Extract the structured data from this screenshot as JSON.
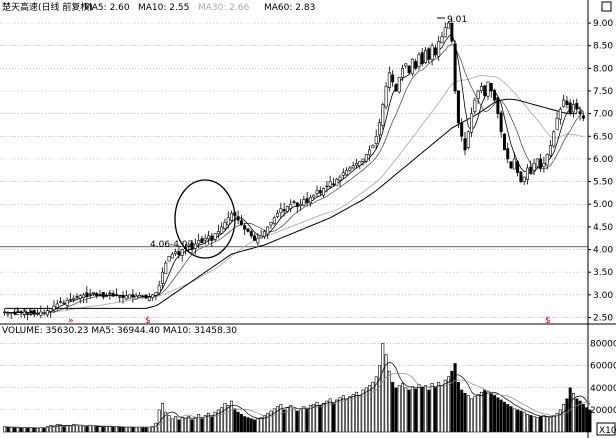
{
  "header": {
    "security": "楚天高速(日线 前复权)",
    "ma_labels": [
      {
        "name": "MA5",
        "value": "2.60",
        "color": "#000000"
      },
      {
        "name": "MA10",
        "value": "2.55",
        "color": "#444444"
      },
      {
        "name": "MA30",
        "value": "2.66",
        "color": "#aaaaaa"
      },
      {
        "name": "MA60",
        "value": "2.83",
        "color": "#000000"
      }
    ]
  },
  "volume_header": {
    "items": [
      {
        "name": "VOLUME",
        "value": "35630.23"
      },
      {
        "name": "MA5",
        "value": "36944.40"
      },
      {
        "name": "MA10",
        "value": "31458.30"
      }
    ]
  },
  "annotations": {
    "high": "9.01",
    "low": "2.55",
    "range": "4.06-4.07",
    "mark_double": "»",
    "mark_s1": "$",
    "mark_s2": "$",
    "multiplier": "X10",
    "corner_box": "□"
  },
  "colors": {
    "candle": "#000000",
    "ma5": "#000000",
    "ma10": "#555555",
    "ma30": "#b0b0b0",
    "ma60": "#000000",
    "grid": "#9a9a9a",
    "mark": "#cc0000"
  },
  "chart_data": {
    "type": "candlestick",
    "y_ticks": [
      "2.50",
      "3.00",
      "3.50",
      "4.00",
      "4.50",
      "5.00",
      "5.50",
      "6.00",
      "6.50",
      "7.00",
      "7.50",
      "8.00",
      "8.50",
      "9.00"
    ],
    "ylim": [
      2.4,
      9.2
    ],
    "volume_ticks": [
      "20000",
      "40000",
      "60000",
      "80000"
    ],
    "volume_ylim": [
      0,
      85000
    ],
    "closes": [
      2.62,
      2.6,
      2.61,
      2.59,
      2.63,
      2.6,
      2.62,
      2.58,
      2.6,
      2.57,
      2.59,
      2.62,
      2.6,
      2.65,
      2.7,
      2.75,
      2.8,
      2.85,
      2.82,
      2.88,
      2.9,
      2.92,
      2.95,
      2.98,
      3.0,
      2.96,
      3.02,
      3.05,
      2.98,
      3.0,
      2.95,
      2.98,
      3.02,
      2.97,
      3.0,
      2.96,
      2.94,
      2.98,
      3.0,
      2.95,
      2.97,
      2.99,
      2.96,
      2.93,
      2.95,
      3.0,
      3.05,
      3.2,
      3.5,
      3.7,
      3.85,
      3.9,
      3.95,
      3.88,
      4.0,
      4.05,
      4.1,
      4.0,
      4.12,
      4.2,
      4.15,
      4.25,
      4.3,
      4.2,
      4.35,
      4.4,
      4.5,
      4.6,
      4.7,
      4.8,
      4.75,
      4.65,
      4.55,
      4.45,
      4.4,
      4.3,
      4.2,
      4.25,
      4.3,
      4.4,
      4.5,
      4.6,
      4.7,
      4.8,
      4.9,
      4.85,
      4.95,
      5.0,
      5.05,
      4.95,
      5.0,
      5.1,
      5.05,
      5.15,
      5.2,
      5.3,
      5.25,
      5.35,
      5.4,
      5.5,
      5.45,
      5.55,
      5.6,
      5.7,
      5.75,
      5.8,
      5.85,
      5.9,
      5.95,
      6.0,
      6.1,
      6.2,
      6.3,
      6.5,
      6.8,
      7.2,
      7.6,
      7.9,
      7.7,
      7.5,
      7.8,
      8.0,
      8.1,
      7.9,
      8.2,
      8.0,
      8.3,
      8.1,
      8.4,
      8.2,
      8.5,
      8.3,
      8.6,
      8.7,
      8.9,
      9.0,
      8.6,
      7.5,
      6.8,
      6.5,
      6.2,
      6.6,
      7.0,
      7.3,
      7.5,
      7.6,
      7.4,
      7.7,
      7.5,
      7.3,
      7.0,
      6.6,
      6.2,
      6.0,
      5.8,
      6.0,
      5.7,
      5.5,
      5.6,
      5.8,
      5.7,
      5.9,
      6.0,
      5.8,
      5.9,
      6.1,
      6.3,
      6.6,
      6.9,
      7.1,
      7.3,
      7.2,
      7.0,
      7.2,
      7.1,
      7.0,
      6.9
    ],
    "ma60": [
      2.7,
      2.7,
      2.7,
      2.7,
      2.7,
      2.7,
      2.7,
      2.7,
      2.7,
      2.7,
      2.7,
      2.7,
      2.7,
      2.7,
      2.7,
      2.7,
      2.7,
      2.7,
      2.7,
      2.7,
      2.7,
      2.7,
      2.7,
      2.7,
      2.7,
      2.7,
      2.7,
      2.7,
      2.7,
      2.7,
      2.7,
      2.7,
      2.7,
      2.7,
      2.7,
      2.7,
      2.7,
      2.7,
      2.7,
      2.7,
      2.7,
      2.7,
      2.7,
      2.7,
      2.72,
      2.74,
      2.76,
      2.8,
      2.85,
      2.9,
      2.95,
      3.0,
      3.05,
      3.1,
      3.15,
      3.2,
      3.25,
      3.3,
      3.35,
      3.4,
      3.45,
      3.5,
      3.55,
      3.6,
      3.65,
      3.7,
      3.75,
      3.8,
      3.85,
      3.9,
      3.92,
      3.94,
      3.96,
      3.98,
      4.0,
      4.02,
      4.04,
      4.06,
      4.08,
      4.1,
      4.13,
      4.16,
      4.19,
      4.22,
      4.25,
      4.28,
      4.31,
      4.34,
      4.37,
      4.4,
      4.43,
      4.46,
      4.49,
      4.52,
      4.55,
      4.58,
      4.61,
      4.64,
      4.67,
      4.7,
      4.74,
      4.78,
      4.82,
      4.86,
      4.9,
      4.94,
      4.98,
      5.02,
      5.06,
      5.1,
      5.15,
      5.2,
      5.25,
      5.3,
      5.36,
      5.42,
      5.48,
      5.54,
      5.6,
      5.66,
      5.72,
      5.78,
      5.84,
      5.9,
      5.96,
      6.02,
      6.08,
      6.14,
      6.2,
      6.26,
      6.32,
      6.38,
      6.44,
      6.5,
      6.56,
      6.62,
      6.68,
      6.72,
      6.76,
      6.8,
      6.84,
      6.88,
      6.92,
      6.96,
      7.0,
      7.05,
      7.1,
      7.15,
      7.2,
      7.25,
      7.28,
      7.3,
      7.31,
      7.32,
      7.32,
      7.31,
      7.3,
      7.28,
      7.26,
      7.24,
      7.22,
      7.2,
      7.18,
      7.16,
      7.14,
      7.12,
      7.1,
      7.08,
      7.06,
      7.04,
      7.02,
      7.01,
      7.0,
      7.0,
      7.0
    ],
    "volumes": [
      5000,
      4500,
      4000,
      4200,
      3800,
      4100,
      3900,
      4300,
      3700,
      4000,
      3600,
      4200,
      3900,
      4800,
      6000,
      5500,
      7000,
      6500,
      5000,
      6000,
      5500,
      7000,
      6500,
      6000,
      5500,
      5000,
      6200,
      5800,
      5000,
      4800,
      4500,
      5000,
      5200,
      4700,
      4900,
      4400,
      4200,
      4600,
      4800,
      4300,
      4500,
      4700,
      4400,
      4100,
      4300,
      5000,
      8000,
      20000,
      26000,
      18000,
      15000,
      12000,
      14000,
      11000,
      13000,
      12500,
      14000,
      11000,
      13000,
      16000,
      12000,
      15000,
      17000,
      14000,
      18000,
      20000,
      22000,
      26000,
      24000,
      28000,
      21000,
      18000,
      16000,
      14000,
      13000,
      12000,
      11000,
      12000,
      13000,
      15000,
      17000,
      19000,
      21000,
      23000,
      25000,
      20000,
      22000,
      24000,
      21000,
      19000,
      20000,
      23000,
      21000,
      24000,
      25000,
      27000,
      24000,
      26000,
      28000,
      30000,
      26000,
      29000,
      31000,
      33000,
      30000,
      32000,
      34000,
      36000,
      33000,
      38000,
      40000,
      42000,
      45000,
      50000,
      60000,
      80000,
      70000,
      55000,
      45000,
      40000,
      42000,
      44000,
      40000,
      38000,
      41000,
      39000,
      43000,
      40000,
      42000,
      38000,
      44000,
      41000,
      45000,
      42000,
      47000,
      50000,
      55000,
      62000,
      45000,
      38000,
      35000,
      33000,
      30000,
      32000,
      34000,
      36000,
      38000,
      37000,
      35000,
      33000,
      31000,
      29000,
      27000,
      25000,
      23000,
      21000,
      20000,
      19000,
      18000,
      16000,
      15000,
      14000,
      13000,
      14000,
      15000,
      14000,
      13000,
      15000,
      17000,
      20000,
      25000,
      30000,
      40000,
      35000,
      30000,
      28000,
      25000,
      22000,
      20000
    ]
  }
}
